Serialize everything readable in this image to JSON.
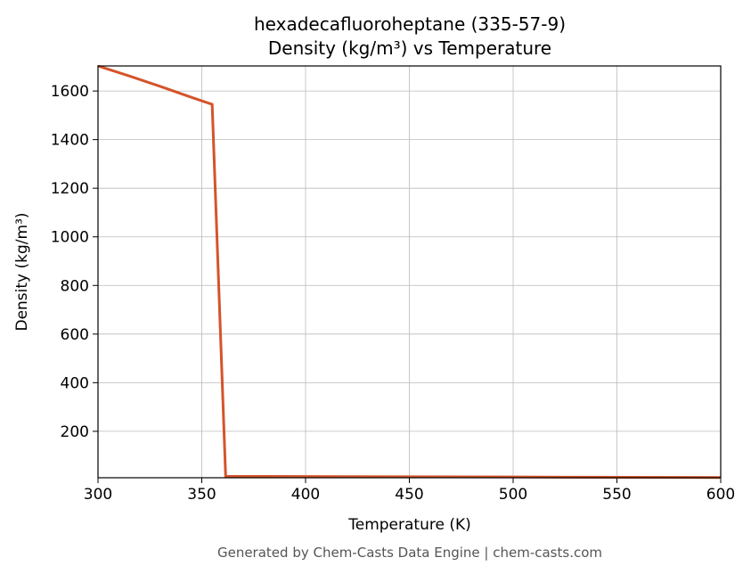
{
  "chart_data": {
    "type": "line",
    "title": "hexadecafluoroheptane (335-57-9)",
    "subtitle": "Density (kg/m³) vs Temperature",
    "x_label": "Temperature (K)",
    "y_label": "Density (kg/m³)",
    "footer": "Generated by Chem-Casts Data Engine | chem-casts.com",
    "x": [
      300,
      315,
      330,
      345,
      355,
      361.5,
      400,
      500,
      600
    ],
    "series": [
      {
        "name": "Density",
        "color": "#d4542a",
        "values": [
          1703,
          1662,
          1619,
          1574,
          1545,
          15,
          14,
          12,
          10
        ]
      }
    ],
    "xlim": [
      300,
      600
    ],
    "xticks": [
      300,
      350,
      400,
      450,
      500,
      550,
      600
    ],
    "ylim": [
      9,
      1703
    ],
    "yticks": [
      200,
      400,
      600,
      800,
      1000,
      1200,
      1400,
      1600
    ],
    "grid": true
  }
}
